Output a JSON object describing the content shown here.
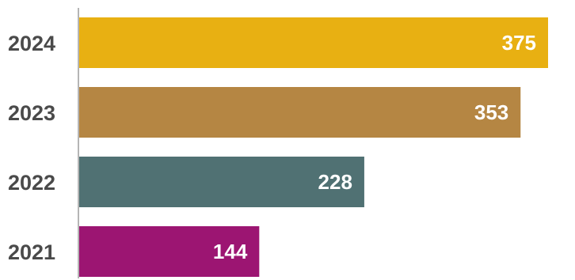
{
  "chart_data": {
    "type": "bar",
    "orientation": "horizontal",
    "categories": [
      "2024",
      "2023",
      "2022",
      "2021"
    ],
    "values": [
      375,
      353,
      228,
      144
    ],
    "bar_colors": [
      "#E8B012",
      "#B58643",
      "#507173",
      "#9C1572"
    ],
    "value_label_color": "#FFFFFF",
    "category_label_color": "#4A4A4A",
    "axis_color": "#B5B5B5",
    "xlim": [
      0,
      375
    ],
    "grid": false,
    "legend": "none"
  }
}
